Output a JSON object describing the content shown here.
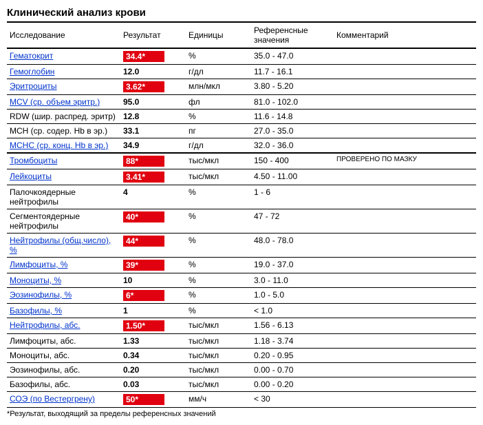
{
  "title": "Клинический анализ крови",
  "headers": {
    "name": "Исследование",
    "result": "Результат",
    "units": "Единицы",
    "ref": "Референсные значения",
    "comment": "Комментарий"
  },
  "footnote": "*Результат, выходящий за пределы референсных значений",
  "colors": {
    "flag_bg": "#e00010",
    "flag_text": "#ffffff",
    "link": "#0033cc",
    "border": "#000000"
  },
  "rows": [
    {
      "name": "Гематокрит",
      "link": true,
      "result": "34.4*",
      "flagged": true,
      "units": "%",
      "ref": "35.0 - 47.0",
      "comment": "",
      "bigsep": false
    },
    {
      "name": "Гемоглобин",
      "link": true,
      "result": "12.0",
      "flagged": false,
      "units": "г/дл",
      "ref": "11.7 - 16.1",
      "comment": "",
      "bigsep": false
    },
    {
      "name": "Эритроциты",
      "link": true,
      "result": "3.62*",
      "flagged": true,
      "units": "млн/мкл",
      "ref": "3.80 - 5.20",
      "comment": "",
      "bigsep": false
    },
    {
      "name": "MCV (ср. объем эритр.)",
      "link": true,
      "result": "95.0",
      "flagged": false,
      "units": "фл",
      "ref": "81.0 - 102.0",
      "comment": "",
      "bigsep": false
    },
    {
      "name": "RDW (шир. распред. эритр)",
      "link": false,
      "result": "12.8",
      "flagged": false,
      "units": "%",
      "ref": "11.6 - 14.8",
      "comment": "",
      "bigsep": false
    },
    {
      "name": "MCH (ср. содер. Hb в эр.)",
      "link": false,
      "result": "33.1",
      "flagged": false,
      "units": "пг",
      "ref": "27.0 - 35.0",
      "comment": "",
      "bigsep": false
    },
    {
      "name": "МСНС (ср. конц. Hb в эр.)",
      "link": true,
      "result": "34.9",
      "flagged": false,
      "units": "г/дл",
      "ref": "32.0 - 36.0",
      "comment": "",
      "bigsep": true
    },
    {
      "name": "Тромбоциты",
      "link": true,
      "result": "88*",
      "flagged": true,
      "units": "тыс/мкл",
      "ref": "150 - 400",
      "comment": "ПРОВЕРЕНО ПО МАЗКУ",
      "bigsep": false
    },
    {
      "name": "Лейкоциты",
      "link": true,
      "result": "3.41*",
      "flagged": true,
      "units": "тыс/мкл",
      "ref": "4.50 - 11.00",
      "comment": "",
      "bigsep": false
    },
    {
      "name": "Палочкоядерные нейтрофилы",
      "link": false,
      "result": "4",
      "flagged": false,
      "units": "%",
      "ref": "1 - 6",
      "comment": "",
      "bigsep": false
    },
    {
      "name": "Сегментоядерные нейтрофилы",
      "link": false,
      "result": "40*",
      "flagged": true,
      "units": "%",
      "ref": "47 - 72",
      "comment": "",
      "bigsep": false
    },
    {
      "name": "Нейтрофилы (общ.число), %",
      "link": true,
      "result": "44*",
      "flagged": true,
      "units": "%",
      "ref": "48.0 - 78.0",
      "comment": "",
      "bigsep": false
    },
    {
      "name": "Лимфоциты, %",
      "link": true,
      "result": "39*",
      "flagged": true,
      "units": "%",
      "ref": "19.0 - 37.0",
      "comment": "",
      "bigsep": false
    },
    {
      "name": "Моноциты, %",
      "link": true,
      "result": "10",
      "flagged": false,
      "units": "%",
      "ref": "3.0 - 11.0",
      "comment": "",
      "bigsep": false
    },
    {
      "name": "Эозинофилы, %",
      "link": true,
      "result": "6*",
      "flagged": true,
      "units": "%",
      "ref": "1.0 - 5.0",
      "comment": "",
      "bigsep": false
    },
    {
      "name": "Базофилы, %",
      "link": true,
      "result": "1",
      "flagged": false,
      "units": "%",
      "ref": "< 1.0",
      "comment": "",
      "bigsep": false
    },
    {
      "name": "Нейтрофилы, абс.",
      "link": true,
      "result": "1.50*",
      "flagged": true,
      "units": "тыс/мкл",
      "ref": "1.56 - 6.13",
      "comment": "",
      "bigsep": false
    },
    {
      "name": "Лимфоциты, абс.",
      "link": false,
      "result": "1.33",
      "flagged": false,
      "units": "тыс/мкл",
      "ref": "1.18 - 3.74",
      "comment": "",
      "bigsep": false
    },
    {
      "name": "Моноциты, абс.",
      "link": false,
      "result": "0.34",
      "flagged": false,
      "units": "тыс/мкл",
      "ref": "0.20 - 0.95",
      "comment": "",
      "bigsep": false
    },
    {
      "name": "Эозинофилы, абс.",
      "link": false,
      "result": "0.20",
      "flagged": false,
      "units": "тыс/мкл",
      "ref": "0.00 - 0.70",
      "comment": "",
      "bigsep": false
    },
    {
      "name": "Базофилы, абс.",
      "link": false,
      "result": "0.03",
      "flagged": false,
      "units": "тыс/мкл",
      "ref": "0.00 - 0.20",
      "comment": "",
      "bigsep": false
    },
    {
      "name": "СОЭ (по Вестергрену)",
      "link": true,
      "result": "50*",
      "flagged": true,
      "units": "мм/ч",
      "ref": "< 30",
      "comment": "",
      "bigsep": false
    }
  ]
}
